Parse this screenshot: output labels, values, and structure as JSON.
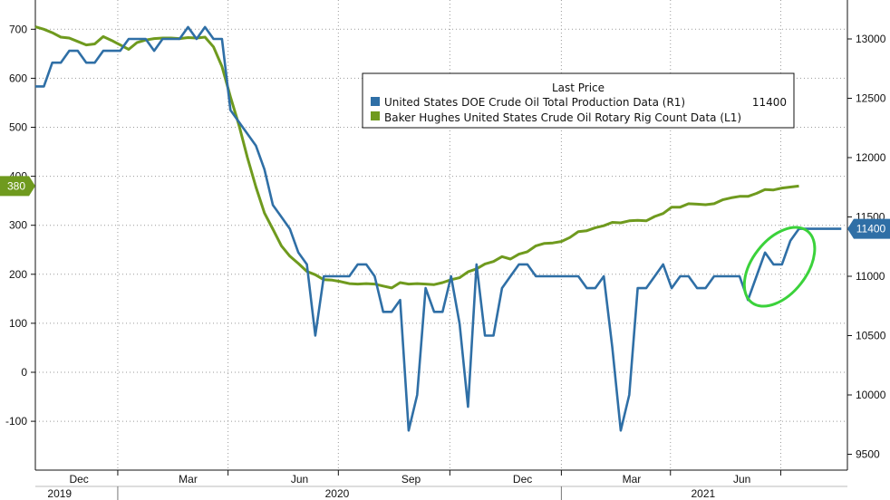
{
  "chart_data": {
    "type": "line",
    "title": "",
    "xlabel": "",
    "ylabel_left": "",
    "ylabel_right": "",
    "grid": true,
    "legend_placement": "top-center",
    "legend_title": "Last Price",
    "x_months": [
      "Dec",
      "Mar",
      "Jun",
      "Sep",
      "Dec",
      "Mar",
      "Jun"
    ],
    "x_years": [
      "2019",
      "2020",
      "2021"
    ],
    "x_range": [
      "2019-10-25",
      "2021-08-25"
    ],
    "left_axis": {
      "ticks": [
        -100,
        0,
        100,
        200,
        300,
        400,
        500,
        600,
        700
      ],
      "ylim": [
        -200,
        720
      ]
    },
    "right_axis": {
      "ticks": [
        9500,
        10000,
        10500,
        11000,
        11500,
        12000,
        12500,
        13000
      ],
      "ylim": [
        9500,
        13000
      ]
    },
    "series": [
      {
        "name": "United States DOE Crude Oil Total Production Data  (R1)",
        "last_price": "11400",
        "color": "#2f6fa6",
        "axis": "right",
        "points": [
          [
            "2019-10-25",
            12600
          ],
          [
            "2019-11-01",
            12600
          ],
          [
            "2019-11-08",
            12800
          ],
          [
            "2019-11-15",
            12800
          ],
          [
            "2019-11-22",
            12900
          ],
          [
            "2019-11-29",
            12900
          ],
          [
            "2019-12-06",
            12800
          ],
          [
            "2019-12-13",
            12800
          ],
          [
            "2019-12-20",
            12900
          ],
          [
            "2019-12-27",
            12900
          ],
          [
            "2020-01-03",
            12900
          ],
          [
            "2020-01-10",
            13000
          ],
          [
            "2020-01-17",
            13000
          ],
          [
            "2020-01-24",
            13000
          ],
          [
            "2020-01-31",
            12900
          ],
          [
            "2020-02-07",
            13000
          ],
          [
            "2020-02-14",
            13000
          ],
          [
            "2020-02-21",
            13000
          ],
          [
            "2020-02-28",
            13100
          ],
          [
            "2020-03-06",
            13000
          ],
          [
            "2020-03-13",
            13100
          ],
          [
            "2020-03-20",
            13000
          ],
          [
            "2020-03-27",
            13000
          ],
          [
            "2020-04-03",
            12400
          ],
          [
            "2020-04-10",
            12300
          ],
          [
            "2020-04-17",
            12200
          ],
          [
            "2020-04-24",
            12100
          ],
          [
            "2020-05-01",
            11900
          ],
          [
            "2020-05-08",
            11600
          ],
          [
            "2020-05-15",
            11500
          ],
          [
            "2020-05-22",
            11400
          ],
          [
            "2020-05-29",
            11200
          ],
          [
            "2020-06-05",
            11100
          ],
          [
            "2020-06-12",
            10500
          ],
          [
            "2020-06-19",
            11000
          ],
          [
            "2020-06-26",
            11000
          ],
          [
            "2020-07-03",
            11000
          ],
          [
            "2020-07-10",
            11000
          ],
          [
            "2020-07-17",
            11100
          ],
          [
            "2020-07-24",
            11100
          ],
          [
            "2020-07-31",
            11000
          ],
          [
            "2020-08-07",
            10700
          ],
          [
            "2020-08-14",
            10700
          ],
          [
            "2020-08-21",
            10800
          ],
          [
            "2020-08-28",
            9700
          ],
          [
            "2020-09-04",
            10000
          ],
          [
            "2020-09-11",
            10900
          ],
          [
            "2020-09-18",
            10700
          ],
          [
            "2020-09-25",
            10700
          ],
          [
            "2020-10-02",
            11000
          ],
          [
            "2020-10-09",
            10600
          ],
          [
            "2020-10-16",
            9900
          ],
          [
            "2020-10-23",
            11100
          ],
          [
            "2020-10-30",
            10500
          ],
          [
            "2020-11-06",
            10500
          ],
          [
            "2020-11-13",
            10900
          ],
          [
            "2020-11-20",
            11000
          ],
          [
            "2020-11-27",
            11100
          ],
          [
            "2020-12-04",
            11100
          ],
          [
            "2020-12-11",
            11000
          ],
          [
            "2020-12-18",
            11000
          ],
          [
            "2020-12-25",
            11000
          ],
          [
            "2021-01-01",
            11000
          ],
          [
            "2021-01-08",
            11000
          ],
          [
            "2021-01-15",
            11000
          ],
          [
            "2021-01-22",
            10900
          ],
          [
            "2021-01-29",
            10900
          ],
          [
            "2021-02-05",
            11000
          ],
          [
            "2021-02-12",
            10400
          ],
          [
            "2021-02-19",
            9700
          ],
          [
            "2021-02-26",
            10000
          ],
          [
            "2021-03-05",
            10900
          ],
          [
            "2021-03-12",
            10900
          ],
          [
            "2021-03-19",
            11000
          ],
          [
            "2021-03-26",
            11100
          ],
          [
            "2021-04-02",
            10900
          ],
          [
            "2021-04-09",
            11000
          ],
          [
            "2021-04-16",
            11000
          ],
          [
            "2021-04-23",
            10900
          ],
          [
            "2021-04-30",
            10900
          ],
          [
            "2021-05-07",
            11000
          ],
          [
            "2021-05-14",
            11000
          ],
          [
            "2021-05-21",
            11000
          ],
          [
            "2021-05-28",
            11000
          ],
          [
            "2021-06-04",
            10800
          ],
          [
            "2021-06-11",
            11000
          ],
          [
            "2021-06-18",
            11200
          ],
          [
            "2021-06-25",
            11100
          ],
          [
            "2021-07-02",
            11100
          ],
          [
            "2021-07-09",
            11300
          ],
          [
            "2021-07-16",
            11400
          ],
          [
            "2021-07-23",
            11400
          ],
          [
            "2021-07-30",
            11400
          ],
          [
            "2021-08-06",
            11400
          ],
          [
            "2021-08-13",
            11400
          ],
          [
            "2021-08-20",
            11400
          ]
        ]
      },
      {
        "name": "Baker Hughes United States Crude Oil Rotary Rig Count Data  (L1)",
        "last_price": "380",
        "color": "#6f9a1e",
        "axis": "left",
        "points": [
          [
            "2019-10-25",
            705
          ],
          [
            "2019-11-01",
            700
          ],
          [
            "2019-11-08",
            693
          ],
          [
            "2019-11-15",
            684
          ],
          [
            "2019-11-22",
            682
          ],
          [
            "2019-11-29",
            675
          ],
          [
            "2019-12-06",
            668
          ],
          [
            "2019-12-13",
            670
          ],
          [
            "2019-12-20",
            685
          ],
          [
            "2019-12-27",
            677
          ],
          [
            "2020-01-03",
            668
          ],
          [
            "2020-01-10",
            659
          ],
          [
            "2020-01-17",
            673
          ],
          [
            "2020-01-24",
            678
          ],
          [
            "2020-01-31",
            681
          ],
          [
            "2020-02-07",
            682
          ],
          [
            "2020-02-14",
            682
          ],
          [
            "2020-02-21",
            681
          ],
          [
            "2020-02-28",
            683
          ],
          [
            "2020-03-06",
            682
          ],
          [
            "2020-03-13",
            684
          ],
          [
            "2020-03-20",
            664
          ],
          [
            "2020-03-27",
            624
          ],
          [
            "2020-04-03",
            562
          ],
          [
            "2020-04-10",
            504
          ],
          [
            "2020-04-17",
            438
          ],
          [
            "2020-04-24",
            378
          ],
          [
            "2020-05-01",
            325
          ],
          [
            "2020-05-08",
            292
          ],
          [
            "2020-05-15",
            258
          ],
          [
            "2020-05-22",
            237
          ],
          [
            "2020-05-29",
            222
          ],
          [
            "2020-06-05",
            206
          ],
          [
            "2020-06-12",
            199
          ],
          [
            "2020-06-19",
            189
          ],
          [
            "2020-06-26",
            188
          ],
          [
            "2020-07-03",
            185
          ],
          [
            "2020-07-10",
            181
          ],
          [
            "2020-07-17",
            180
          ],
          [
            "2020-07-24",
            181
          ],
          [
            "2020-07-31",
            180
          ],
          [
            "2020-08-07",
            176
          ],
          [
            "2020-08-14",
            172
          ],
          [
            "2020-08-21",
            183
          ],
          [
            "2020-08-28",
            180
          ],
          [
            "2020-09-04",
            181
          ],
          [
            "2020-09-11",
            180
          ],
          [
            "2020-09-18",
            179
          ],
          [
            "2020-09-25",
            183
          ],
          [
            "2020-10-02",
            189
          ],
          [
            "2020-10-09",
            193
          ],
          [
            "2020-10-16",
            205
          ],
          [
            "2020-10-23",
            211
          ],
          [
            "2020-10-30",
            221
          ],
          [
            "2020-11-06",
            226
          ],
          [
            "2020-11-13",
            236
          ],
          [
            "2020-11-20",
            231
          ],
          [
            "2020-11-27",
            241
          ],
          [
            "2020-12-04",
            246
          ],
          [
            "2020-12-11",
            258
          ],
          [
            "2020-12-18",
            263
          ],
          [
            "2020-12-25",
            264
          ],
          [
            "2021-01-01",
            267
          ],
          [
            "2021-01-08",
            275
          ],
          [
            "2021-01-15",
            287
          ],
          [
            "2021-01-22",
            289
          ],
          [
            "2021-01-29",
            295
          ],
          [
            "2021-02-05",
            299
          ],
          [
            "2021-02-12",
            306
          ],
          [
            "2021-02-19",
            305
          ],
          [
            "2021-02-26",
            309
          ],
          [
            "2021-03-05",
            310
          ],
          [
            "2021-03-12",
            309
          ],
          [
            "2021-03-19",
            318
          ],
          [
            "2021-03-26",
            324
          ],
          [
            "2021-04-02",
            337
          ],
          [
            "2021-04-09",
            337
          ],
          [
            "2021-04-16",
            344
          ],
          [
            "2021-04-23",
            343
          ],
          [
            "2021-04-30",
            342
          ],
          [
            "2021-05-07",
            344
          ],
          [
            "2021-05-14",
            352
          ],
          [
            "2021-05-21",
            356
          ],
          [
            "2021-05-28",
            359
          ],
          [
            "2021-06-04",
            359
          ],
          [
            "2021-06-11",
            365
          ],
          [
            "2021-06-18",
            373
          ],
          [
            "2021-06-25",
            372
          ],
          [
            "2021-07-02",
            376
          ],
          [
            "2021-07-09",
            378
          ],
          [
            "2021-07-16",
            380
          ]
        ]
      }
    ],
    "annotation": {
      "type": "ellipse",
      "color": "#3bd23b",
      "center": [
        "2021-06-30",
        11080
      ],
      "note": ""
    }
  }
}
